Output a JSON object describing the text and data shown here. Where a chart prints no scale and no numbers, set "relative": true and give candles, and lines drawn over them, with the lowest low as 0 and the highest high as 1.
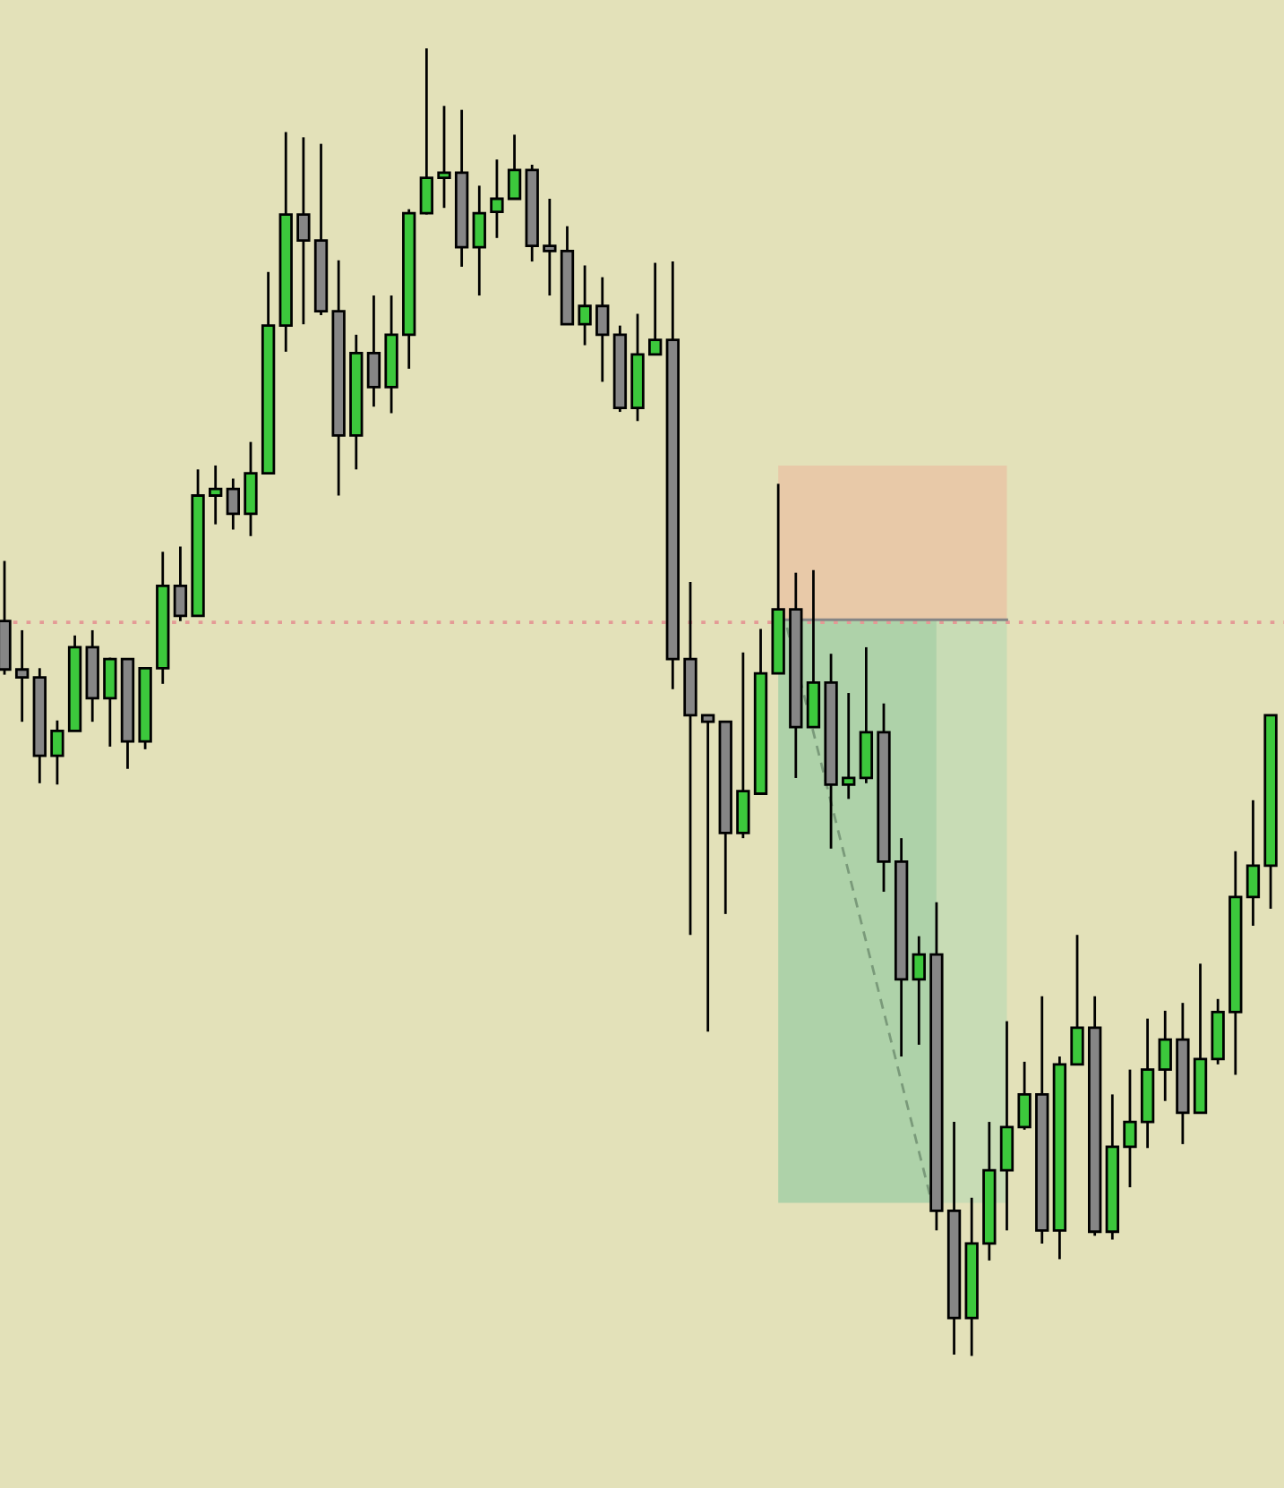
{
  "chart_data": {
    "type": "candlestick",
    "relative": true,
    "categories": [
      null,
      null,
      null,
      null,
      null,
      null,
      null,
      null,
      null,
      null,
      null,
      null,
      null,
      null,
      null,
      null,
      null,
      null,
      null,
      null,
      null,
      null,
      null,
      null,
      null,
      null,
      null,
      null,
      null,
      null,
      null,
      null,
      null,
      null,
      null,
      null,
      null,
      null,
      null,
      null,
      null,
      null,
      null,
      null,
      null,
      null,
      null,
      null,
      null,
      null,
      null,
      null,
      null,
      null,
      null,
      null,
      null,
      null,
      null,
      null,
      null,
      null,
      null,
      null,
      null,
      null,
      null,
      null,
      null,
      null,
      null,
      null,
      null
    ],
    "ohlc": [
      [
        0.562,
        0.608,
        0.521,
        0.525
      ],
      [
        0.525,
        0.555,
        0.485,
        0.519
      ],
      [
        0.519,
        0.526,
        0.438,
        0.459
      ],
      [
        0.459,
        0.486,
        0.437,
        0.478
      ],
      [
        0.478,
        0.551,
        0.478,
        0.542
      ],
      [
        0.542,
        0.555,
        0.485,
        0.503
      ],
      [
        0.503,
        0.534,
        0.466,
        0.533
      ],
      [
        0.533,
        0.533,
        0.449,
        0.47
      ],
      [
        0.47,
        0.526,
        0.464,
        0.526
      ],
      [
        0.526,
        0.615,
        0.514,
        0.589
      ],
      [
        0.589,
        0.619,
        0.562,
        0.566
      ],
      [
        0.566,
        0.678,
        0.566,
        0.658
      ],
      [
        0.658,
        0.681,
        0.636,
        0.663
      ],
      [
        0.663,
        0.671,
        0.632,
        0.644
      ],
      [
        0.644,
        0.699,
        0.627,
        0.675
      ],
      [
        0.675,
        0.829,
        0.675,
        0.788
      ],
      [
        0.788,
        0.936,
        0.768,
        0.873
      ],
      [
        0.873,
        0.932,
        0.789,
        0.853
      ],
      [
        0.853,
        0.927,
        0.796,
        0.799
      ],
      [
        0.799,
        0.838,
        0.658,
        0.704
      ],
      [
        0.704,
        0.781,
        0.678,
        0.767
      ],
      [
        0.767,
        0.811,
        0.726,
        0.741
      ],
      [
        0.741,
        0.811,
        0.721,
        0.781
      ],
      [
        0.781,
        0.877,
        0.755,
        0.874
      ],
      [
        0.874,
        1.0,
        0.873,
        0.901
      ],
      [
        0.901,
        0.956,
        0.878,
        0.905
      ],
      [
        0.905,
        0.953,
        0.833,
        0.848
      ],
      [
        0.848,
        0.895,
        0.811,
        0.874
      ],
      [
        0.875,
        0.915,
        0.855,
        0.885
      ],
      [
        0.885,
        0.934,
        0.885,
        0.907
      ],
      [
        0.907,
        0.911,
        0.837,
        0.849
      ],
      [
        0.849,
        0.885,
        0.811,
        0.845
      ],
      [
        0.845,
        0.864,
        0.789,
        0.789
      ],
      [
        0.789,
        0.834,
        0.773,
        0.803
      ],
      [
        0.803,
        0.825,
        0.745,
        0.781
      ],
      [
        0.781,
        0.788,
        0.722,
        0.725
      ],
      [
        0.725,
        0.797,
        0.715,
        0.766
      ],
      [
        0.766,
        0.836,
        0.766,
        0.777
      ],
      [
        0.777,
        0.837,
        0.51,
        0.533
      ],
      [
        0.533,
        0.592,
        0.322,
        0.49
      ],
      [
        0.49,
        0.49,
        0.248,
        0.485
      ],
      [
        0.485,
        0.485,
        0.338,
        0.4
      ],
      [
        0.4,
        0.538,
        0.396,
        0.432
      ],
      [
        0.43,
        0.556,
        0.43,
        0.522
      ],
      [
        0.522,
        0.667,
        0.522,
        0.571
      ],
      [
        0.571,
        0.599,
        0.442,
        0.481
      ],
      [
        0.481,
        0.601,
        0.481,
        0.515
      ],
      [
        0.515,
        0.537,
        0.388,
        0.437
      ],
      [
        0.437,
        0.507,
        0.426,
        0.442
      ],
      [
        0.442,
        0.542,
        0.438,
        0.477
      ],
      [
        0.477,
        0.499,
        0.355,
        0.378
      ],
      [
        0.378,
        0.396,
        0.229,
        0.288
      ],
      [
        0.288,
        0.321,
        0.238,
        0.307
      ],
      [
        0.307,
        0.347,
        0.096,
        0.111
      ],
      [
        0.111,
        0.179,
        0.001,
        0.029
      ],
      [
        0.029,
        0.121,
        0.0,
        0.086
      ],
      [
        0.086,
        0.179,
        0.073,
        0.142
      ],
      [
        0.142,
        0.256,
        0.096,
        0.175
      ],
      [
        0.175,
        0.225,
        0.173,
        0.2
      ],
      [
        0.2,
        0.275,
        0.086,
        0.096
      ],
      [
        0.096,
        0.229,
        0.074,
        0.223
      ],
      [
        0.223,
        0.322,
        0.223,
        0.251
      ],
      [
        0.251,
        0.275,
        0.092,
        0.095
      ],
      [
        0.095,
        0.2,
        0.089,
        0.16
      ],
      [
        0.16,
        0.219,
        0.129,
        0.179
      ],
      [
        0.179,
        0.258,
        0.159,
        0.219
      ],
      [
        0.219,
        0.264,
        0.195,
        0.242
      ],
      [
        0.242,
        0.27,
        0.162,
        0.186
      ],
      [
        0.186,
        0.3,
        0.186,
        0.227
      ],
      [
        0.227,
        0.273,
        0.223,
        0.263
      ],
      [
        0.263,
        0.386,
        0.215,
        0.351
      ],
      [
        0.351,
        0.425,
        0.329,
        0.375
      ],
      [
        0.375,
        0.49,
        0.342,
        0.49
      ]
    ],
    "colors": [
      "#868686",
      "#868686",
      "#868686",
      "#3cc83c",
      "#3cc83c",
      "#868686",
      "#3cc83c",
      "#868686",
      "#3cc83c",
      "#3cc83c",
      "#868686",
      "#3cc83c",
      "#3cc83c",
      "#868686",
      "#3cc83c",
      "#3cc83c",
      "#3cc83c",
      "#868686",
      "#868686",
      "#868686",
      "#3cc83c",
      "#868686",
      "#3cc83c",
      "#3cc83c",
      "#3cc83c",
      "#3cc83c",
      "#868686",
      "#3cc83c",
      "#3cc83c",
      "#3cc83c",
      "#868686",
      "#868686",
      "#868686",
      "#3cc83c",
      "#868686",
      "#868686",
      "#3cc83c",
      "#3cc83c",
      "#868686",
      "#868686",
      "#868686",
      "#868686",
      "#3cc83c",
      "#3cc83c",
      "#3cc83c",
      "#868686",
      "#3cc83c",
      "#868686",
      "#3cc83c",
      "#3cc83c",
      "#868686",
      "#868686",
      "#3cc83c",
      "#868686",
      "#868686",
      "#3cc83c",
      "#3cc83c",
      "#3cc83c",
      "#3cc83c",
      "#868686",
      "#3cc83c",
      "#3cc83c",
      "#868686",
      "#3cc83c",
      "#3cc83c",
      "#3cc83c",
      "#3cc83c",
      "#868686",
      "#3cc83c",
      "#3cc83c",
      "#3cc83c",
      "#3cc83c",
      "#3cc83c"
    ],
    "ref_lines": [
      {
        "axis": "y",
        "value": 0.561,
        "color": "#e49a96",
        "line_style": "dotted"
      }
    ]
  }
}
